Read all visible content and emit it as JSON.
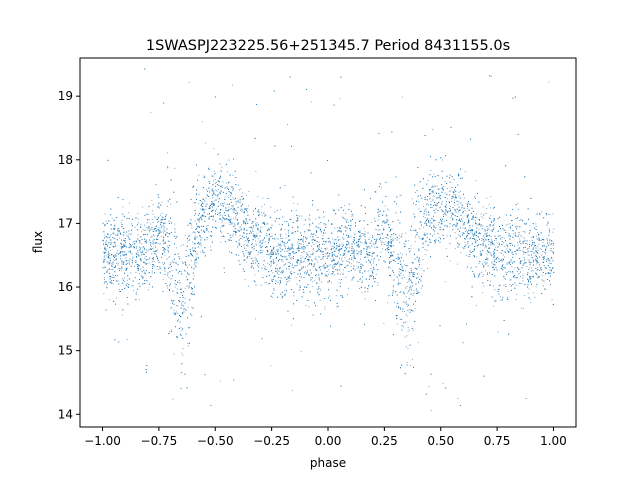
{
  "chart_data": {
    "type": "scatter",
    "title": "1SWASPJ223225.56+251345.7 Period 8431155.0s",
    "xlabel": "phase",
    "ylabel": "flux",
    "xlim": [
      -1.1,
      1.1
    ],
    "ylim": [
      13.8,
      19.6
    ],
    "x_ticks": [
      -1.0,
      -0.75,
      -0.5,
      -0.25,
      0.0,
      0.25,
      0.5,
      0.75,
      1.0
    ],
    "x_tick_labels": [
      "−1.00",
      "−0.75",
      "−0.50",
      "−0.25",
      "0.00",
      "0.25",
      "0.50",
      "0.75",
      "1.00"
    ],
    "y_ticks": [
      14,
      15,
      16,
      17,
      18,
      19
    ],
    "y_tick_labels": [
      "14",
      "15",
      "16",
      "17",
      "18",
      "19"
    ],
    "grid": false,
    "legend": "none",
    "marker_color": "#1f77b4",
    "series": [
      {
        "phase_profile": {
          "phase": [
            -1.0,
            -0.9,
            -0.8,
            -0.75,
            -0.7,
            -0.65,
            -0.6,
            -0.55,
            -0.5,
            -0.45,
            -0.4,
            -0.35,
            -0.3,
            -0.25,
            -0.2,
            -0.1,
            0.0,
            0.1,
            0.2,
            0.25,
            0.3,
            0.35,
            0.4,
            0.45,
            0.5,
            0.55,
            0.6,
            0.65,
            0.7,
            0.75,
            0.8,
            0.9,
            1.0
          ],
          "median_flux": [
            16.5,
            16.5,
            16.5,
            17.0,
            16.4,
            15.8,
            16.6,
            17.2,
            17.3,
            17.3,
            17.0,
            16.8,
            16.7,
            16.5,
            16.5,
            16.5,
            16.5,
            16.6,
            16.5,
            17.0,
            16.4,
            15.8,
            16.6,
            17.2,
            17.3,
            17.3,
            17.0,
            16.8,
            16.7,
            16.5,
            16.5,
            16.5,
            16.5
          ]
        }
      }
    ]
  }
}
